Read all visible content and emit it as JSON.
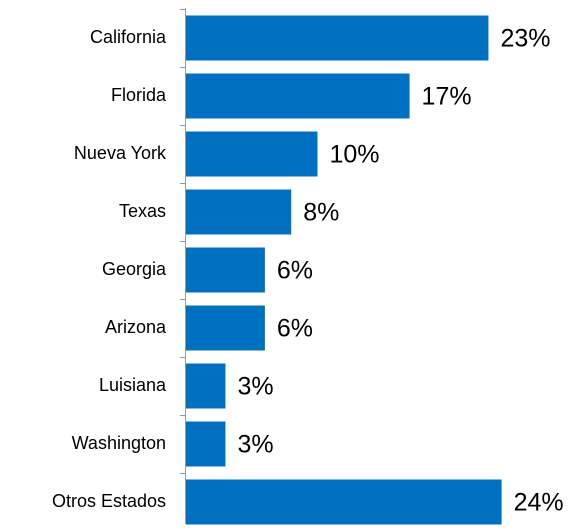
{
  "chart_data": {
    "type": "barh",
    "categories": [
      "California",
      "Florida",
      "Nueva York",
      "Texas",
      "Georgia",
      "Arizona",
      "Luisiana",
      "Washington",
      "Otros Estados"
    ],
    "values": [
      23,
      17,
      10,
      8,
      6,
      6,
      3,
      3,
      24
    ],
    "value_labels": [
      "23%",
      "17%",
      "10%",
      "8%",
      "6%",
      "6%",
      "3%",
      "3%",
      "24%"
    ],
    "color": "#0070c0"
  }
}
